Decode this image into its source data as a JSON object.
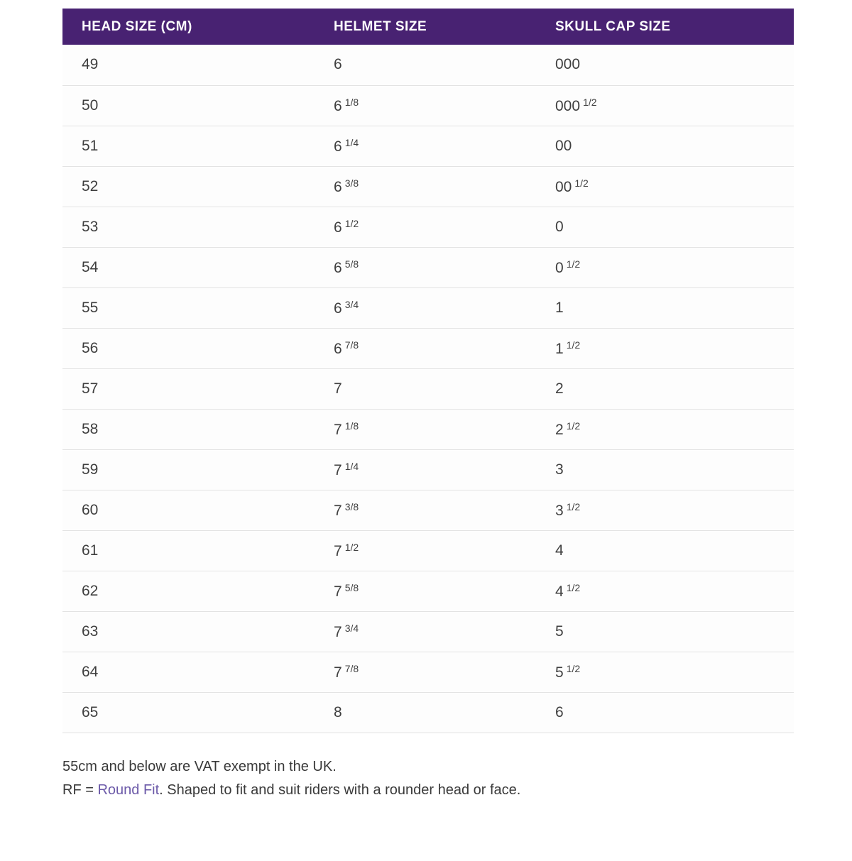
{
  "table": {
    "columns": [
      "HEAD SIZE (CM)",
      "HELMET SIZE",
      "SKULL CAP SIZE"
    ],
    "rows": [
      {
        "head_cm": "49",
        "helmet": {
          "main": "6",
          "sup": ""
        },
        "skull": {
          "main": "000",
          "sup": ""
        }
      },
      {
        "head_cm": "50",
        "helmet": {
          "main": "6",
          "sup": "1/8"
        },
        "skull": {
          "main": "000",
          "sup": "1/2"
        }
      },
      {
        "head_cm": "51",
        "helmet": {
          "main": "6",
          "sup": "1/4"
        },
        "skull": {
          "main": "00",
          "sup": ""
        }
      },
      {
        "head_cm": "52",
        "helmet": {
          "main": "6",
          "sup": "3/8"
        },
        "skull": {
          "main": "00",
          "sup": "1/2"
        }
      },
      {
        "head_cm": "53",
        "helmet": {
          "main": "6",
          "sup": "1/2"
        },
        "skull": {
          "main": "0",
          "sup": ""
        }
      },
      {
        "head_cm": "54",
        "helmet": {
          "main": "6",
          "sup": "5/8"
        },
        "skull": {
          "main": "0",
          "sup": "1/2"
        }
      },
      {
        "head_cm": "55",
        "helmet": {
          "main": "6",
          "sup": "3/4"
        },
        "skull": {
          "main": "1",
          "sup": ""
        }
      },
      {
        "head_cm": "56",
        "helmet": {
          "main": "6",
          "sup": "7/8"
        },
        "skull": {
          "main": "1",
          "sup": "1/2"
        }
      },
      {
        "head_cm": "57",
        "helmet": {
          "main": "7",
          "sup": ""
        },
        "skull": {
          "main": "2",
          "sup": ""
        }
      },
      {
        "head_cm": "58",
        "helmet": {
          "main": "7",
          "sup": "1/8"
        },
        "skull": {
          "main": "2",
          "sup": "1/2"
        }
      },
      {
        "head_cm": "59",
        "helmet": {
          "main": "7",
          "sup": "1/4"
        },
        "skull": {
          "main": "3",
          "sup": ""
        }
      },
      {
        "head_cm": "60",
        "helmet": {
          "main": "7",
          "sup": "3/8"
        },
        "skull": {
          "main": "3",
          "sup": "1/2"
        }
      },
      {
        "head_cm": "61",
        "helmet": {
          "main": "7",
          "sup": "1/2"
        },
        "skull": {
          "main": "4",
          "sup": ""
        }
      },
      {
        "head_cm": "62",
        "helmet": {
          "main": "7",
          "sup": "5/8"
        },
        "skull": {
          "main": "4",
          "sup": "1/2"
        }
      },
      {
        "head_cm": "63",
        "helmet": {
          "main": "7",
          "sup": "3/4"
        },
        "skull": {
          "main": "5",
          "sup": ""
        }
      },
      {
        "head_cm": "64",
        "helmet": {
          "main": "7",
          "sup": "7/8"
        },
        "skull": {
          "main": "5",
          "sup": "1/2"
        }
      },
      {
        "head_cm": "65",
        "helmet": {
          "main": "8",
          "sup": ""
        },
        "skull": {
          "main": "6",
          "sup": ""
        }
      }
    ]
  },
  "notes": {
    "vat_note": "55cm and below are VAT exempt in the UK.",
    "rf_prefix": "RF = ",
    "rf_link": "Round Fit",
    "rf_suffix": ". Shaped to fit and suit riders with a rounder head or face."
  },
  "colors": {
    "header_bg": "#482272",
    "header_text": "#ffffff",
    "cell_text": "#3f3f3f",
    "row_border": "#e3e3e3",
    "link_purple": "#6b59a8"
  }
}
